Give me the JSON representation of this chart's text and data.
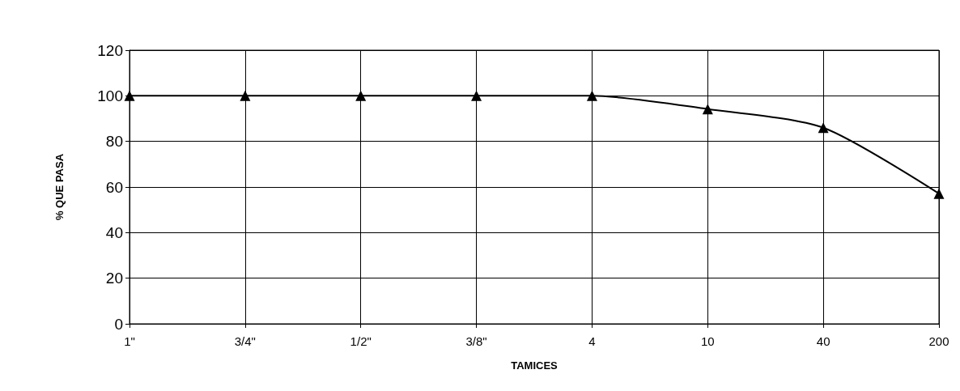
{
  "chart_data": {
    "type": "line",
    "xlabel": "TAMICES",
    "ylabel": "% QUE PASA",
    "categories": [
      "1\"",
      "3/4\"",
      "1/2\"",
      "3/8\"",
      "4",
      "10",
      "40",
      "200"
    ],
    "series": [
      {
        "color": "#000000",
        "values": [
          100,
          100,
          100,
          100,
          100,
          94.2,
          86,
          57.1
        ]
      }
    ],
    "ylim": [
      0,
      120
    ],
    "yticks": [
      0,
      20,
      40,
      60,
      80,
      100,
      120
    ],
    "grid": true,
    "marker": "triangle",
    "line_style": "solid"
  }
}
